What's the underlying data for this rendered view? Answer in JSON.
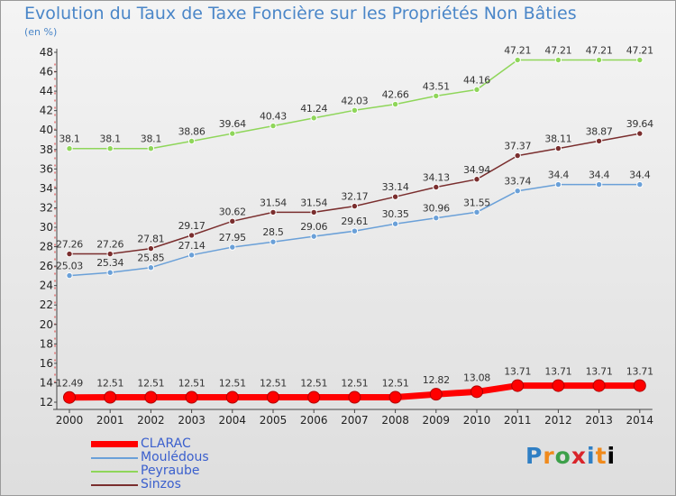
{
  "title": "Evolution du Taux de Taxe Foncière sur les Propriétés Non Bâties",
  "subtitle": "(en %)",
  "logo_text": "Proxiti",
  "chart_data": {
    "type": "line",
    "x": [
      "2000",
      "2001",
      "2002",
      "2003",
      "2004",
      "2005",
      "2006",
      "2007",
      "2008",
      "2009",
      "2010",
      "2011",
      "2012",
      "2013",
      "2014"
    ],
    "ylim": [
      12,
      48
    ],
    "yticks": [
      12,
      14,
      16,
      18,
      20,
      22,
      24,
      26,
      28,
      30,
      32,
      34,
      36,
      38,
      40,
      42,
      44,
      46,
      48
    ],
    "grid": false,
    "legend_position": "bottom-left",
    "series": [
      {
        "name": "CLARAC",
        "color": "#ff0000",
        "values": [
          12.49,
          12.51,
          12.51,
          12.51,
          12.51,
          12.51,
          12.51,
          12.51,
          12.51,
          12.82,
          13.08,
          13.71,
          13.71,
          13.71,
          13.71
        ],
        "labels": [
          "12.49",
          "12.51",
          "12.51",
          "12.51",
          "12.51",
          "12.51",
          "12.51",
          "12.51",
          "12.51",
          "12.82",
          "13.08",
          "13.71",
          "13.71",
          "13.71",
          "13.71"
        ]
      },
      {
        "name": "Mouledous",
        "display_name": "Mouledous",
        "color": "#6aa0d8",
        "values": [
          25.03,
          25.34,
          25.85,
          27.14,
          27.95,
          28.5,
          29.06,
          29.61,
          30.35,
          30.96,
          31.55,
          33.74,
          34.4,
          34.4,
          34.4
        ],
        "labels": [
          "25.03",
          "25.34",
          "25.85",
          "27.14",
          "27.95",
          "28.5",
          "29.06",
          "29.61",
          "30.35",
          "30.96",
          "31.55",
          "33.74",
          "34.4",
          "34.4",
          "34.4"
        ]
      },
      {
        "name": "Peyraube",
        "color": "#8fd65a",
        "values": [
          38.1,
          38.1,
          38.1,
          38.86,
          39.64,
          40.43,
          41.24,
          42.03,
          42.66,
          43.51,
          44.16,
          47.21,
          47.21,
          47.21,
          47.21
        ],
        "labels": [
          "38.1",
          "38.1",
          "38.1",
          "38.86",
          "39.64",
          "40.43",
          "41.24",
          "42.03",
          "42.66",
          "43.51",
          "44.16",
          "47.21",
          "47.21",
          "47.21",
          "47.21"
        ]
      },
      {
        "name": "Sinzos",
        "color": "#7a2e2e",
        "values": [
          27.26,
          27.26,
          27.81,
          29.17,
          30.62,
          31.54,
          31.54,
          32.17,
          33.14,
          34.13,
          34.94,
          37.37,
          38.11,
          38.87,
          39.64
        ],
        "labels": [
          "27.26",
          "27.26",
          "27.81",
          "29.17",
          "30.62",
          "31.54",
          "31.54",
          "32.17",
          "33.14",
          "34.13",
          "34.94",
          "37.37",
          "38.11",
          "38.87",
          "39.64"
        ]
      }
    ]
  }
}
